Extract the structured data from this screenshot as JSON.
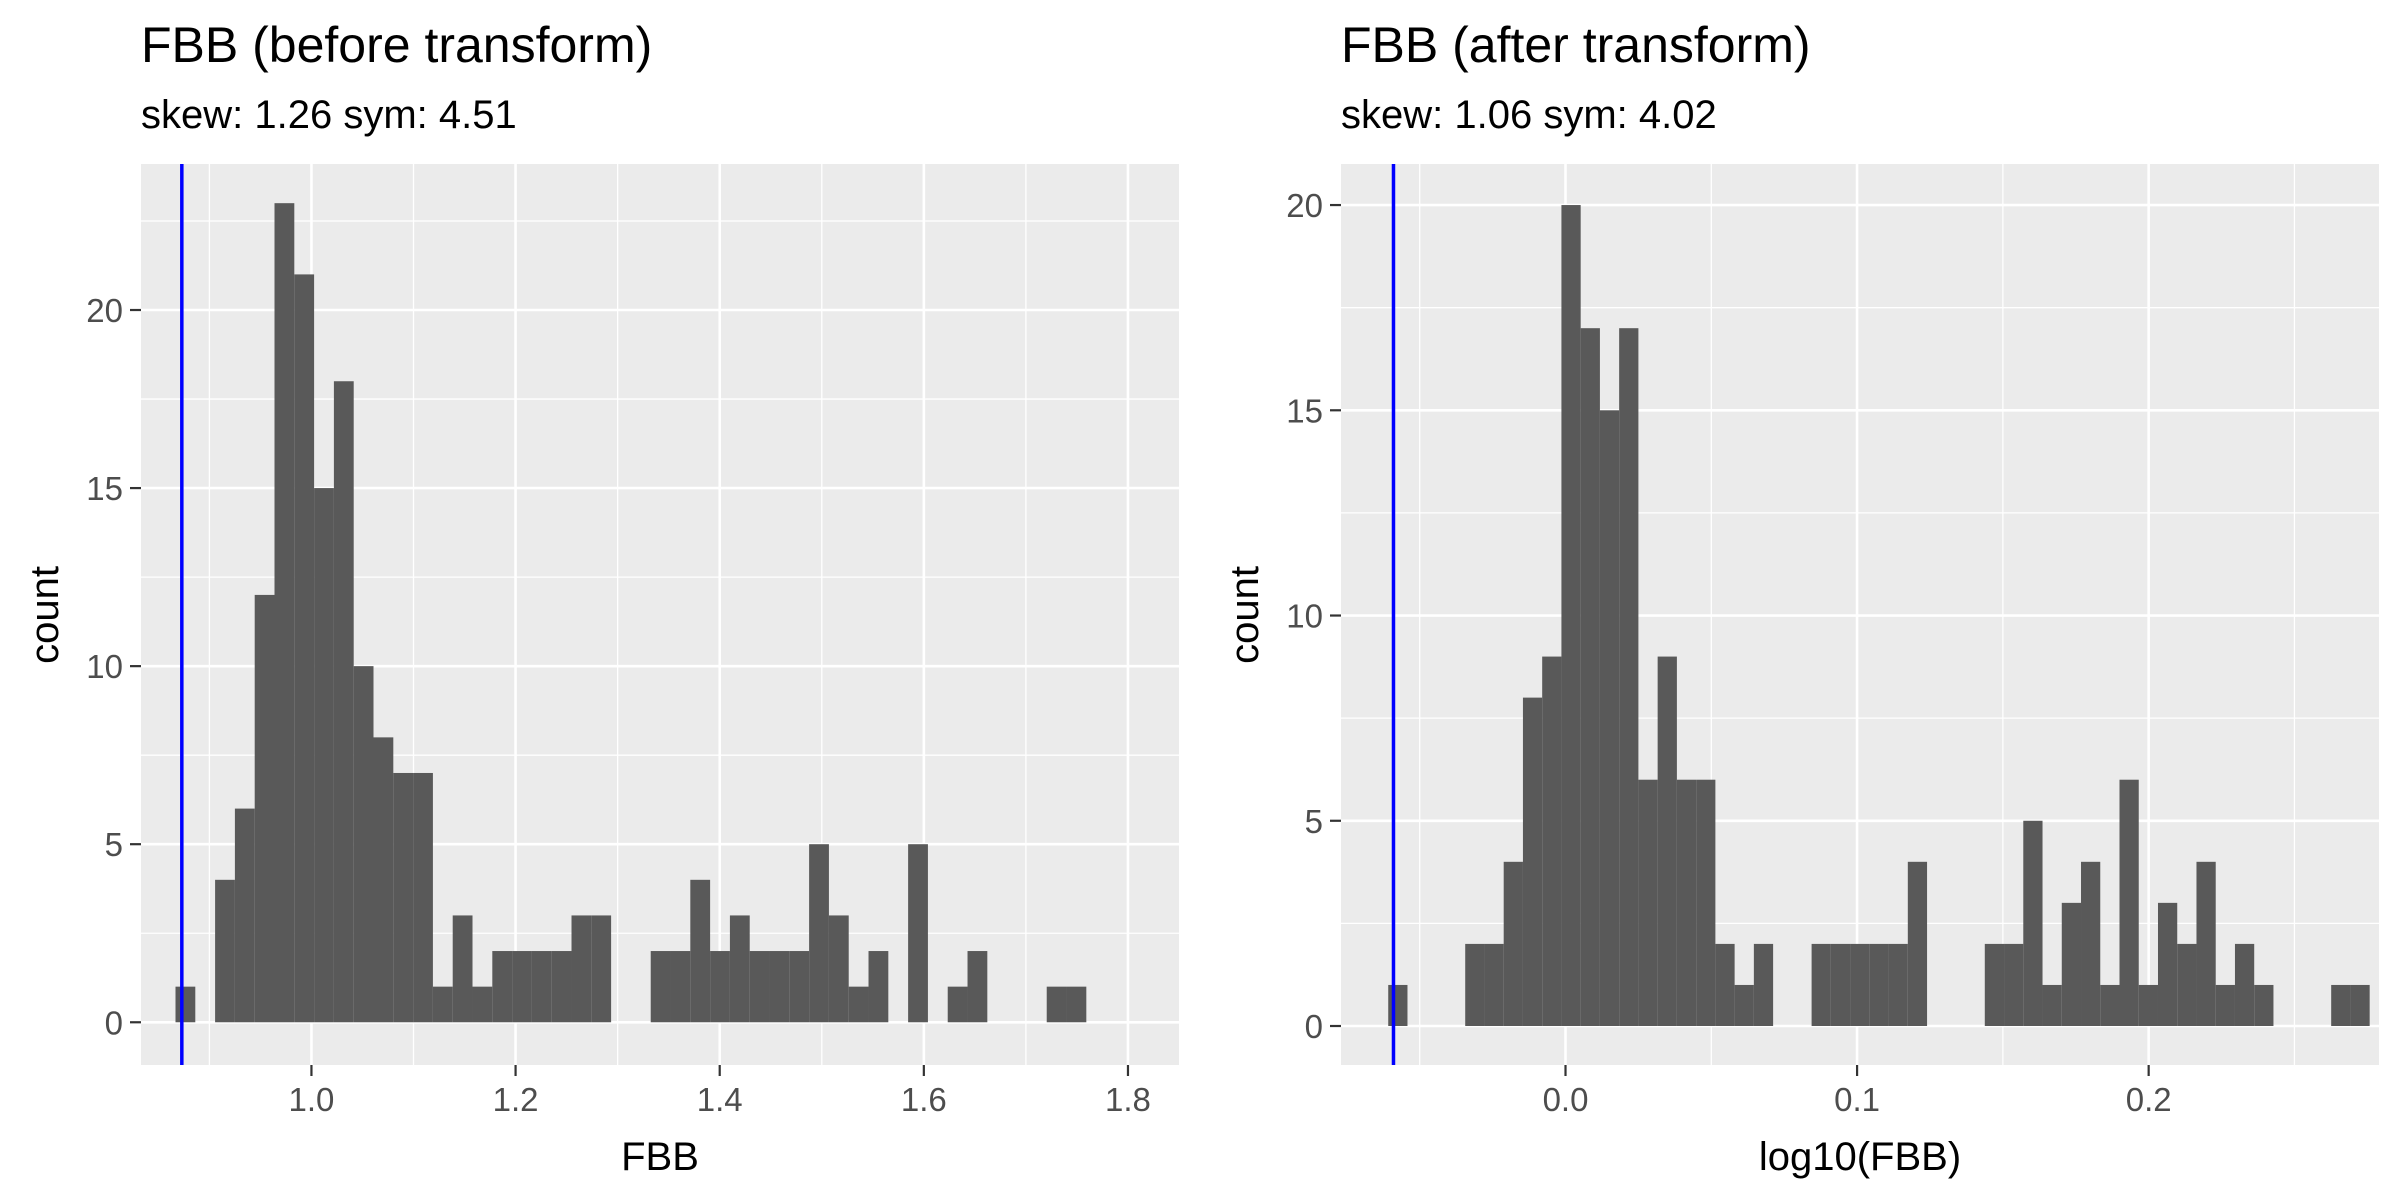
{
  "chart_data": [
    {
      "type": "bar",
      "title": "FBB (before transform)",
      "subtitle": "skew: 1.26 sym: 4.51",
      "xlabel": "FBB",
      "ylabel": "count",
      "xlim": [
        0.833,
        1.85
      ],
      "ylim": [
        -1.2,
        24.1
      ],
      "x_ticks": [
        1.0,
        1.2,
        1.4,
        1.6,
        1.8
      ],
      "x_tick_labels": [
        "1.0",
        "1.2",
        "1.4",
        "1.6",
        "1.8"
      ],
      "y_ticks": [
        0,
        5,
        10,
        15,
        20
      ],
      "y_tick_labels": [
        "0",
        "5",
        "10",
        "15",
        "20"
      ],
      "grid": true,
      "bin_width": 0.0194,
      "first_bin_center": 0.8765,
      "counts": [
        1,
        0,
        4,
        6,
        12,
        23,
        21,
        15,
        18,
        10,
        8,
        7,
        7,
        1,
        3,
        1,
        2,
        2,
        2,
        2,
        3,
        3,
        0,
        0,
        2,
        2,
        4,
        2,
        3,
        2,
        2,
        2,
        5,
        3,
        1,
        2,
        0,
        5,
        0,
        1,
        2,
        0,
        0,
        0,
        1,
        1
      ],
      "reference_line_x": 0.873,
      "colors": {
        "bars": "#595959",
        "reference_line": "#0000ff",
        "panel": "#ebebeb"
      }
    },
    {
      "type": "bar",
      "title": "FBB (after transform)",
      "subtitle": "skew: 1.06 sym: 4.02",
      "xlabel": "log10(FBB)",
      "ylabel": "count",
      "xlim": [
        -0.077,
        0.279
      ],
      "ylim": [
        -0.95,
        21.0
      ],
      "x_ticks": [
        0.0,
        0.1,
        0.2
      ],
      "x_tick_labels": [
        "0.0",
        "0.1",
        "0.2"
      ],
      "y_ticks": [
        0,
        5,
        10,
        15,
        20
      ],
      "y_tick_labels": [
        "0",
        "5",
        "10",
        "15",
        "20"
      ],
      "grid": true,
      "bin_width": 0.0066,
      "first_bin_center": -0.0575,
      "counts": [
        1,
        0,
        0,
        0,
        2,
        2,
        4,
        8,
        9,
        20,
        17,
        15,
        17,
        6,
        9,
        6,
        6,
        2,
        1,
        2,
        0,
        0,
        2,
        2,
        2,
        2,
        2,
        4,
        0,
        0,
        0,
        2,
        2,
        5,
        1,
        3,
        4,
        1,
        6,
        1,
        3,
        2,
        4,
        1,
        2,
        1,
        0,
        0,
        0,
        1,
        1
      ],
      "reference_line_x": -0.059,
      "colors": {
        "bars": "#595959",
        "reference_line": "#0000ff",
        "panel": "#ebebeb"
      }
    }
  ]
}
